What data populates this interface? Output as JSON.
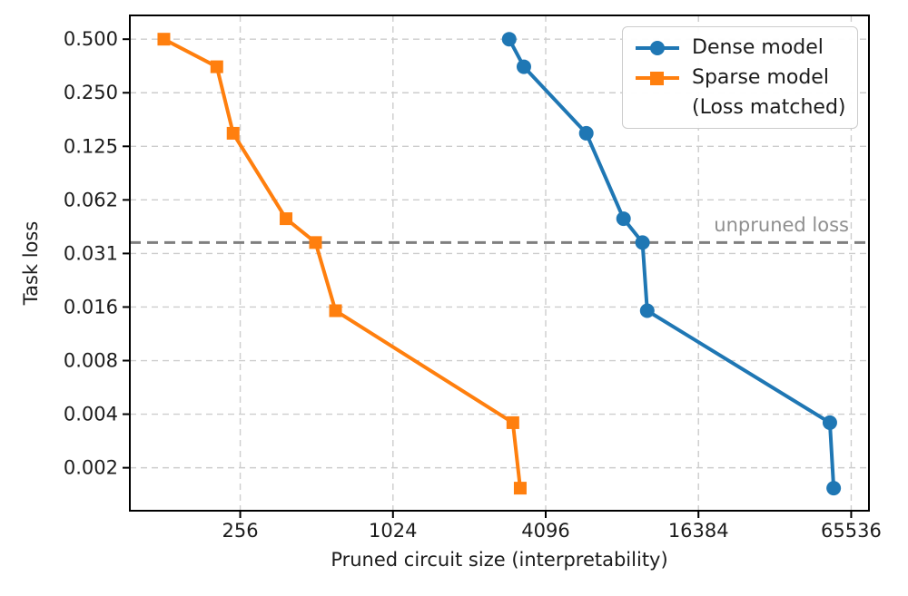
{
  "chart_data": {
    "type": "line",
    "xlabel": "Pruned circuit size (interpretability)",
    "ylabel": "Task loss",
    "x_scale": "log2",
    "y_scale": "log2",
    "xlim": [
      94,
      77000
    ],
    "ylim": [
      0.00112,
      0.68
    ],
    "x_ticks": [
      256,
      1024,
      4096,
      16384,
      65536
    ],
    "x_tick_labels": [
      "256",
      "1024",
      "4096",
      "16384",
      "65536"
    ],
    "y_ticks": [
      0.5,
      0.25,
      0.125,
      0.0625,
      0.03125,
      0.015625,
      0.0078125,
      0.00390625,
      0.001953125
    ],
    "y_tick_labels": [
      "0.500",
      "0.250",
      "0.125",
      "0.062",
      "0.031",
      "0.016",
      "0.008",
      "0.004",
      "0.002"
    ],
    "grid": true,
    "grid_color": "#cdcdcd",
    "legend_position": "upper right",
    "series": [
      {
        "name": "Dense model",
        "label_lines": [
          "Dense model"
        ],
        "color": "#1f77b4",
        "marker": "circle",
        "points": [
          [
            2940,
            0.5
          ],
          [
            3360,
            0.35
          ],
          [
            5920,
            0.148
          ],
          [
            8300,
            0.049
          ],
          [
            9860,
            0.036
          ],
          [
            10290,
            0.0149
          ],
          [
            54000,
            0.0035
          ],
          [
            55900,
            0.0015
          ]
        ]
      },
      {
        "name": "Sparse model (Loss matched)",
        "label_lines": [
          "Sparse model",
          "(Loss matched)"
        ],
        "color": "#ff7f0e",
        "marker": "square",
        "points": [
          [
            128,
            0.5
          ],
          [
            207,
            0.35
          ],
          [
            240,
            0.148
          ],
          [
            388,
            0.049
          ],
          [
            507,
            0.036
          ],
          [
            608,
            0.0149
          ],
          [
            3040,
            0.0035
          ],
          [
            3250,
            0.0015
          ]
        ]
      }
    ],
    "annotation": {
      "label": "unpruned loss",
      "y": 0.036,
      "color": "#7f7f7f",
      "label_color": "#8f8f8f"
    }
  }
}
